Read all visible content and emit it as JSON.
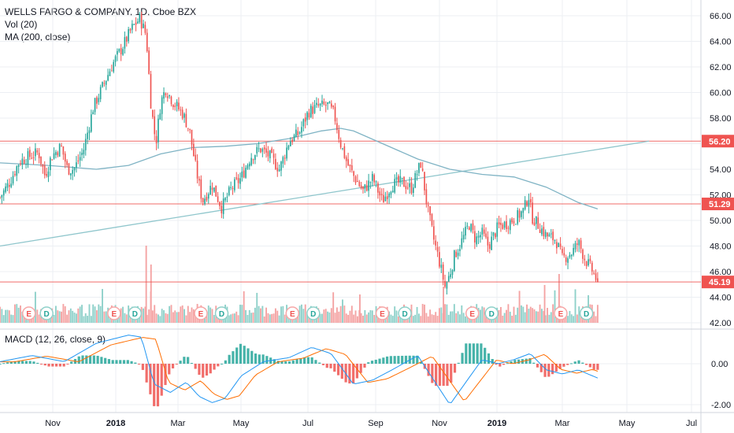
{
  "header": {
    "symbol_line": "WELLS FARGO & COMPANY, 1D, Cboe BZX",
    "volume_label": "Vol (20)",
    "ma_label": "MA (200, close)",
    "macd_label": "MACD (12, 26, close, 9)"
  },
  "colors": {
    "up": "#26a69a",
    "down": "#ef5350",
    "vol_up": "#8fd1ca",
    "vol_down": "#f4a3a3",
    "ma": "#7fb3c4",
    "trend": "#8fc6cc",
    "hline": "#ef5350",
    "grid": "#eceff3",
    "macd_line": "#2196f3",
    "signal_line": "#ff6d00"
  },
  "chart_data": {
    "type": "candlestick",
    "y_axis": {
      "min": 42,
      "max": 67,
      "ticks": [
        "66.00",
        "64.00",
        "62.00",
        "60.00",
        "58.00",
        "56.00",
        "54.00",
        "52.00",
        "50.00",
        "48.00",
        "46.00",
        "44.00",
        "42.00"
      ]
    },
    "macd_axis": {
      "ticks": [
        "0.00",
        "-2.00"
      ]
    },
    "x_axis": {
      "labels": [
        "Nov",
        "2018",
        "Mar",
        "May",
        "Jul",
        "Sep",
        "Nov",
        "2019",
        "Mar",
        "May",
        "Jul"
      ]
    },
    "close_path": [
      {
        "m": 0,
        "v": 51.8
      },
      {
        "m": 0.3,
        "v": 53.0
      },
      {
        "m": 0.6,
        "v": 54.6
      },
      {
        "m": 0.9,
        "v": 55.0
      },
      {
        "m": 1.2,
        "v": 55.3
      },
      {
        "m": 1.4,
        "v": 53.5
      },
      {
        "m": 1.6,
        "v": 55.0
      },
      {
        "m": 1.9,
        "v": 55.8
      },
      {
        "m": 2.1,
        "v": 54.0
      },
      {
        "m": 2.3,
        "v": 54.0
      },
      {
        "m": 2.6,
        "v": 55.5
      },
      {
        "m": 2.9,
        "v": 58.8
      },
      {
        "m": 3.2,
        "v": 60.5
      },
      {
        "m": 3.5,
        "v": 62.2
      },
      {
        "m": 3.8,
        "v": 63.5
      },
      {
        "m": 4.1,
        "v": 65.0
      },
      {
        "m": 4.35,
        "v": 65.8
      },
      {
        "m": 4.55,
        "v": 64.5
      },
      {
        "m": 4.7,
        "v": 59.0
      },
      {
        "m": 4.85,
        "v": 56.0
      },
      {
        "m": 5.0,
        "v": 59.2
      },
      {
        "m": 5.15,
        "v": 60.3
      },
      {
        "m": 5.4,
        "v": 59.2
      },
      {
        "m": 5.7,
        "v": 58.3
      },
      {
        "m": 5.9,
        "v": 57.0
      },
      {
        "m": 6.1,
        "v": 54.0
      },
      {
        "m": 6.3,
        "v": 51.5
      },
      {
        "m": 6.6,
        "v": 52.8
      },
      {
        "m": 6.9,
        "v": 51.0
      },
      {
        "m": 7.2,
        "v": 52.5
      },
      {
        "m": 7.5,
        "v": 53.3
      },
      {
        "m": 7.8,
        "v": 55.0
      },
      {
        "m": 8.1,
        "v": 55.6
      },
      {
        "m": 8.4,
        "v": 55.0
      },
      {
        "m": 8.7,
        "v": 54.0
      },
      {
        "m": 9.0,
        "v": 56.2
      },
      {
        "m": 9.3,
        "v": 56.8
      },
      {
        "m": 9.6,
        "v": 58.5
      },
      {
        "m": 9.9,
        "v": 58.9
      },
      {
        "m": 10.2,
        "v": 59.0
      },
      {
        "m": 10.4,
        "v": 58.3
      },
      {
        "m": 10.6,
        "v": 56.0
      },
      {
        "m": 10.8,
        "v": 54.5
      },
      {
        "m": 11.0,
        "v": 53.5
      },
      {
        "m": 11.3,
        "v": 52.3
      },
      {
        "m": 11.6,
        "v": 53.3
      },
      {
        "m": 11.9,
        "v": 51.5
      },
      {
        "m": 12.2,
        "v": 52.8
      },
      {
        "m": 12.5,
        "v": 53.0
      },
      {
        "m": 12.8,
        "v": 52.5
      },
      {
        "m": 13.1,
        "v": 54.5
      },
      {
        "m": 13.3,
        "v": 51.0
      },
      {
        "m": 13.5,
        "v": 48.5
      },
      {
        "m": 13.7,
        "v": 46.5
      },
      {
        "m": 13.85,
        "v": 44.8
      },
      {
        "m": 14.0,
        "v": 45.8
      },
      {
        "m": 14.15,
        "v": 47.3
      },
      {
        "m": 14.3,
        "v": 48.0
      },
      {
        "m": 14.6,
        "v": 49.7
      },
      {
        "m": 14.8,
        "v": 48.5
      },
      {
        "m": 15.0,
        "v": 49.0
      },
      {
        "m": 15.2,
        "v": 48.0
      },
      {
        "m": 15.5,
        "v": 49.5
      },
      {
        "m": 15.8,
        "v": 49.8
      },
      {
        "m": 16.1,
        "v": 50.3
      },
      {
        "m": 16.3,
        "v": 50.8
      },
      {
        "m": 16.45,
        "v": 52.0
      },
      {
        "m": 16.55,
        "v": 50.3
      },
      {
        "m": 16.8,
        "v": 49.5
      },
      {
        "m": 17.0,
        "v": 48.8
      },
      {
        "m": 17.3,
        "v": 48.5
      },
      {
        "m": 17.5,
        "v": 47.0
      },
      {
        "m": 17.8,
        "v": 47.5
      },
      {
        "m": 18.0,
        "v": 48.3
      },
      {
        "m": 18.2,
        "v": 47.0
      },
      {
        "m": 18.45,
        "v": 46.0
      },
      {
        "m": 18.6,
        "v": 45.19
      }
    ],
    "ma200": [
      {
        "m": 0,
        "v": 54.5
      },
      {
        "m": 1.5,
        "v": 54.3
      },
      {
        "m": 3,
        "v": 54.0
      },
      {
        "m": 4,
        "v": 54.3
      },
      {
        "m": 5,
        "v": 55.2
      },
      {
        "m": 6,
        "v": 55.7
      },
      {
        "m": 7,
        "v": 55.8
      },
      {
        "m": 8,
        "v": 56.0
      },
      {
        "m": 9,
        "v": 56.4
      },
      {
        "m": 10,
        "v": 57.0
      },
      {
        "m": 10.6,
        "v": 57.2
      },
      {
        "m": 11,
        "v": 57.0
      },
      {
        "m": 12,
        "v": 55.9
      },
      {
        "m": 13,
        "v": 54.8
      },
      {
        "m": 14,
        "v": 54.0
      },
      {
        "m": 15,
        "v": 53.6
      },
      {
        "m": 16,
        "v": 53.4
      },
      {
        "m": 17,
        "v": 52.6
      },
      {
        "m": 18,
        "v": 51.4
      },
      {
        "m": 18.6,
        "v": 50.9
      }
    ],
    "trendline": [
      {
        "m": 0,
        "v": 48.0
      },
      {
        "m": 20.2,
        "v": 56.2
      }
    ],
    "horizontal_levels": [
      {
        "value": 56.2,
        "label": "56.20",
        "color": "#ef5350"
      },
      {
        "value": 51.29,
        "label": "51.29",
        "color": "#ef5350"
      },
      {
        "value": 45.19,
        "label": "45.19",
        "color": "#ef5350"
      }
    ],
    "earnings": [
      {
        "m": 0.9,
        "label": "E"
      },
      {
        "m": 1.45,
        "label": "D"
      },
      {
        "m": 3.55,
        "label": "E"
      },
      {
        "m": 4.2,
        "label": "D"
      },
      {
        "m": 6.25,
        "label": "E"
      },
      {
        "m": 6.9,
        "label": "D"
      },
      {
        "m": 9.1,
        "label": "E"
      },
      {
        "m": 9.75,
        "label": "D"
      },
      {
        "m": 11.9,
        "label": "E"
      },
      {
        "m": 12.6,
        "label": "D"
      },
      {
        "m": 14.7,
        "label": "E"
      },
      {
        "m": 15.3,
        "label": "D"
      },
      {
        "m": 17.45,
        "label": "E"
      },
      {
        "m": 18.25,
        "label": "D"
      }
    ],
    "macd_path": [
      {
        "m": 0,
        "v": 0.1
      },
      {
        "m": 1,
        "v": 0.4
      },
      {
        "m": 2,
        "v": 0.1
      },
      {
        "m": 3,
        "v": 1.0
      },
      {
        "m": 4,
        "v": 1.4
      },
      {
        "m": 4.4,
        "v": 1.3
      },
      {
        "m": 4.8,
        "v": -1.0
      },
      {
        "m": 5.3,
        "v": -1.4
      },
      {
        "m": 5.8,
        "v": -0.9
      },
      {
        "m": 6.2,
        "v": -1.6
      },
      {
        "m": 6.6,
        "v": -1.9
      },
      {
        "m": 7.0,
        "v": -1.7
      },
      {
        "m": 7.5,
        "v": -0.6
      },
      {
        "m": 8.2,
        "v": 0.1
      },
      {
        "m": 9,
        "v": 0.3
      },
      {
        "m": 9.7,
        "v": 0.8
      },
      {
        "m": 10.3,
        "v": 0.5
      },
      {
        "m": 11,
        "v": -1.0
      },
      {
        "m": 11.6,
        "v": -0.8
      },
      {
        "m": 12.2,
        "v": -0.3
      },
      {
        "m": 13,
        "v": 0.4
      },
      {
        "m": 13.5,
        "v": -0.8
      },
      {
        "m": 14,
        "v": -2.0
      },
      {
        "m": 14.5,
        "v": -0.9
      },
      {
        "m": 15,
        "v": 0.2
      },
      {
        "m": 15.5,
        "v": 0.0
      },
      {
        "m": 16,
        "v": 0.2
      },
      {
        "m": 16.5,
        "v": 0.5
      },
      {
        "m": 17,
        "v": -0.3
      },
      {
        "m": 17.5,
        "v": -0.5
      },
      {
        "m": 18,
        "v": -0.3
      },
      {
        "m": 18.6,
        "v": -0.7
      }
    ]
  }
}
